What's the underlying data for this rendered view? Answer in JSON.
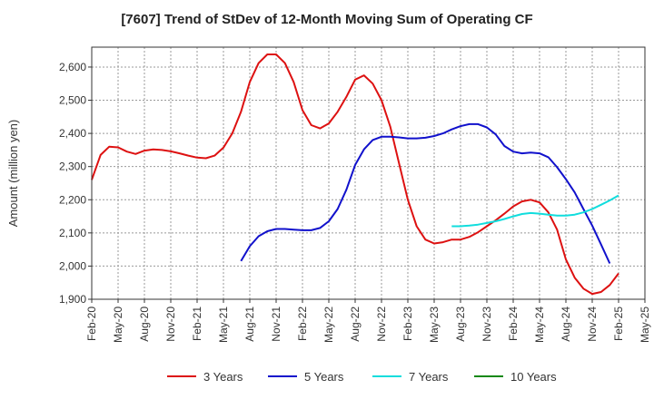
{
  "chart_data": {
    "type": "line",
    "title": "[7607]  Trend of StDev of 12-Month Moving Sum of Operating CF",
    "xlabel": "",
    "ylabel": "Amount (million yen)",
    "ylim": [
      1900,
      2660
    ],
    "yticks": [
      1900,
      2000,
      2100,
      2200,
      2300,
      2400,
      2500,
      2600
    ],
    "ytick_labels": [
      "1,900",
      "2,000",
      "2,100",
      "2,200",
      "2,300",
      "2,400",
      "2,500",
      "2,600"
    ],
    "xticks": [
      "Feb-20",
      "May-20",
      "Aug-20",
      "Nov-20",
      "Feb-21",
      "May-21",
      "Aug-21",
      "Nov-21",
      "Feb-22",
      "May-22",
      "Aug-22",
      "Nov-22",
      "Feb-23",
      "May-23",
      "Aug-23",
      "Nov-23",
      "Feb-24",
      "May-24",
      "Aug-24",
      "Nov-24",
      "Feb-25",
      "May-25"
    ],
    "x_start": "Feb-20",
    "grid": true,
    "legend_position": "bottom",
    "series": [
      {
        "name": "3 Years",
        "color": "#dd1111",
        "start": "Feb-20",
        "values": [
          2260,
          2335,
          2360,
          2358,
          2345,
          2338,
          2348,
          2352,
          2350,
          2346,
          2340,
          2333,
          2327,
          2325,
          2333,
          2357,
          2400,
          2465,
          2555,
          2612,
          2638,
          2638,
          2612,
          2555,
          2470,
          2425,
          2415,
          2430,
          2465,
          2510,
          2562,
          2575,
          2550,
          2500,
          2420,
          2310,
          2200,
          2120,
          2080,
          2068,
          2072,
          2080,
          2080,
          2088,
          2102,
          2120,
          2138,
          2158,
          2180,
          2195,
          2200,
          2192,
          2162,
          2110,
          2020,
          1965,
          1932,
          1916,
          1922,
          1943,
          1978
        ]
      },
      {
        "name": "5 Years",
        "color": "#1111cc",
        "start": "Jul-21",
        "values": [
          2015,
          2060,
          2090,
          2105,
          2112,
          2112,
          2110,
          2108,
          2108,
          2115,
          2135,
          2172,
          2230,
          2305,
          2352,
          2380,
          2390,
          2390,
          2388,
          2385,
          2385,
          2387,
          2392,
          2400,
          2412,
          2422,
          2428,
          2428,
          2418,
          2397,
          2362,
          2345,
          2340,
          2342,
          2340,
          2328,
          2298,
          2262,
          2222,
          2172,
          2122,
          2065,
          2008
        ]
      },
      {
        "name": "7 Years",
        "color": "#11dddd",
        "start": "Jul-23",
        "values": [
          2120,
          2120,
          2122,
          2125,
          2130,
          2135,
          2142,
          2150,
          2157,
          2160,
          2158,
          2155,
          2152,
          2152,
          2155,
          2162,
          2172,
          2185,
          2198,
          2213
        ]
      },
      {
        "name": "10 Years",
        "color": "#118811",
        "start": "Feb-25",
        "values": []
      }
    ]
  }
}
